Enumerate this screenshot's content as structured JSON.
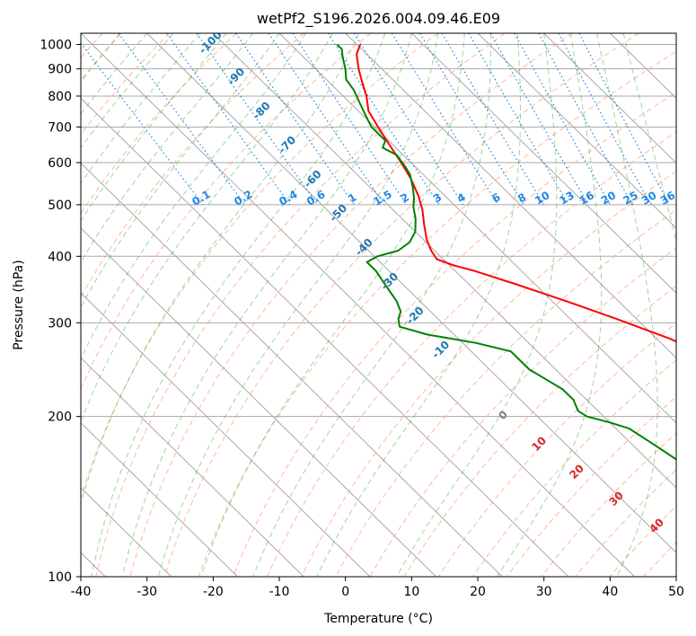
{
  "chart_data": {
    "type": "line",
    "title": "wetPf2_S196.2026.004.09.46.E09",
    "xlabel": "Temperature (°C)",
    "ylabel": "Pressure (hPa)",
    "xlim": [
      -40,
      50
    ],
    "ylim": [
      1050,
      100
    ],
    "x_ticks": [
      "-40",
      "-30",
      "-20",
      "-10",
      "0",
      "10",
      "20",
      "30",
      "40",
      "50"
    ],
    "y_ticks": [
      {
        "p": 100,
        "label": "100"
      },
      {
        "p": 200,
        "label": "200"
      },
      {
        "p": 300,
        "label": "300"
      },
      {
        "p": 400,
        "label": "400"
      },
      {
        "p": 500,
        "label": "500"
      },
      {
        "p": 600,
        "label": "600"
      },
      {
        "p": 700,
        "label": "700"
      },
      {
        "p": 800,
        "label": "800"
      },
      {
        "p": 900,
        "label": "900"
      },
      {
        "p": 1000,
        "label": "1000"
      }
    ],
    "series": [
      {
        "name": "temperature",
        "color": "#ff0000",
        "points": [
          [
            0.5,
            1000
          ],
          [
            -1.5,
            960
          ],
          [
            -3.5,
            900
          ],
          [
            -5,
            850
          ],
          [
            -6.5,
            800
          ],
          [
            -8.5,
            750
          ],
          [
            -9.5,
            700
          ],
          [
            -10.5,
            650
          ],
          [
            -11.5,
            600
          ],
          [
            -12.5,
            560
          ],
          [
            -14,
            520
          ],
          [
            -15.5,
            490
          ],
          [
            -17.5,
            460
          ],
          [
            -19.5,
            430
          ],
          [
            -20.5,
            410
          ],
          [
            -21,
            395
          ],
          [
            -19.5,
            385
          ],
          [
            -17,
            375
          ],
          [
            -13,
            355
          ],
          [
            -8,
            330
          ],
          [
            -3,
            305
          ],
          [
            2,
            280
          ],
          [
            6,
            255
          ],
          [
            10,
            235
          ],
          [
            13.5,
            215
          ],
          [
            16,
            200
          ],
          [
            19,
            185
          ],
          [
            23,
            165
          ],
          [
            27,
            148
          ],
          [
            31,
            133
          ],
          [
            34,
            120
          ],
          [
            37,
            110
          ],
          [
            40,
            102
          ]
        ]
      },
      {
        "name": "dewpoint",
        "color": "#008000",
        "points": [
          [
            -3,
            1000
          ],
          [
            -3,
            980
          ],
          [
            -4,
            950
          ],
          [
            -5.5,
            900
          ],
          [
            -7,
            860
          ],
          [
            -7.5,
            820
          ],
          [
            -8.5,
            780
          ],
          [
            -9.5,
            740
          ],
          [
            -10.5,
            700
          ],
          [
            -10.5,
            660
          ],
          [
            -12,
            640
          ],
          [
            -11,
            620
          ],
          [
            -11.5,
            590
          ],
          [
            -12,
            570
          ],
          [
            -13.5,
            540
          ],
          [
            -15,
            515
          ],
          [
            -16.5,
            495
          ],
          [
            -18,
            470
          ],
          [
            -20,
            445
          ],
          [
            -22.5,
            425
          ],
          [
            -25.5,
            410
          ],
          [
            -29.5,
            400
          ],
          [
            -32,
            390
          ],
          [
            -32,
            375
          ],
          [
            -32.5,
            360
          ],
          [
            -33,
            345
          ],
          [
            -33.5,
            330
          ],
          [
            -34.5,
            315
          ],
          [
            -36,
            305
          ],
          [
            -37,
            295
          ],
          [
            -34,
            285
          ],
          [
            -28,
            275
          ],
          [
            -24,
            265
          ],
          [
            -24,
            255
          ],
          [
            -24,
            245
          ],
          [
            -23,
            235
          ],
          [
            -22,
            225
          ],
          [
            -22,
            215
          ],
          [
            -23,
            205
          ],
          [
            -22.5,
            200
          ],
          [
            -20,
            195
          ],
          [
            -18,
            190
          ],
          [
            -17,
            180
          ],
          [
            -16,
            170
          ],
          [
            -15,
            160
          ],
          [
            -13.5,
            150
          ],
          [
            -11,
            142
          ],
          [
            -7,
            135
          ],
          [
            -3,
            128
          ],
          [
            0,
            120
          ],
          [
            2,
            112
          ],
          [
            4,
            105
          ],
          [
            5,
            100
          ]
        ]
      }
    ],
    "isobar_grid": [
      100,
      200,
      300,
      400,
      500,
      600,
      700,
      800,
      900,
      1000
    ],
    "isotherm_skew_note": "skewed isotherms every 10 °C",
    "dry_adiabat_labels": [
      "-100",
      "-90",
      "-80",
      "-70",
      "-60",
      "-50",
      "-40",
      "-30",
      "-20",
      "-10"
    ],
    "moist_adiabat_labels": [
      {
        "label": "0",
        "color": "#808080"
      },
      {
        "label": "10",
        "color": "#d62728"
      },
      {
        "label": "20",
        "color": "#d62728"
      },
      {
        "label": "30",
        "color": "#d62728"
      },
      {
        "label": "40",
        "color": "#d62728"
      }
    ],
    "mixing_ratio_labels": [
      "0.1",
      "0.2",
      "0.4",
      "0.6",
      "1",
      "1.5",
      "2",
      "3",
      "4",
      "6",
      "8",
      "10",
      "13",
      "16",
      "20",
      "25",
      "30",
      "36"
    ],
    "colors": {
      "dry_adiabat_label": "#1f77b4",
      "mixing_ratio": "#1e88e5",
      "dry_adiabat_line": "#ffa07a",
      "moist_adiabat_line": "#2ca02c"
    }
  }
}
